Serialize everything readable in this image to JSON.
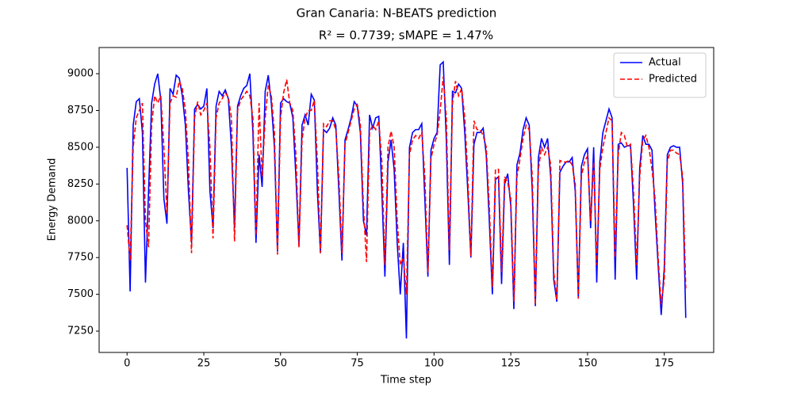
{
  "chart_data": {
    "type": "line",
    "title": "Gran Canaria: N-BEATS prediction",
    "subtitle": "R² = 0.7739; sMAPE = 1.47%",
    "xlabel": "Time step",
    "ylabel": "Energy Demand",
    "xlim": [
      -9.1,
      191.1
    ],
    "ylim": [
      7105,
      9178
    ],
    "xticks": [
      0,
      25,
      50,
      75,
      100,
      125,
      150,
      175
    ],
    "yticks": [
      7250,
      7500,
      7750,
      8000,
      8250,
      8500,
      8750,
      9000
    ],
    "legend": "upper right",
    "grid": false,
    "x": [
      0,
      1,
      2,
      3,
      4,
      5,
      6,
      7,
      8,
      9,
      10,
      11,
      12,
      13,
      14,
      15,
      16,
      17,
      18,
      19,
      20,
      21,
      22,
      23,
      24,
      25,
      26,
      27,
      28,
      29,
      30,
      31,
      32,
      33,
      34,
      35,
      36,
      37,
      38,
      39,
      40,
      41,
      42,
      43,
      44,
      45,
      46,
      47,
      48,
      49,
      50,
      51,
      52,
      53,
      54,
      55,
      56,
      57,
      58,
      59,
      60,
      61,
      62,
      63,
      64,
      65,
      66,
      67,
      68,
      69,
      70,
      71,
      72,
      73,
      74,
      75,
      76,
      77,
      78,
      79,
      80,
      81,
      82,
      83,
      84,
      85,
      86,
      87,
      88,
      89,
      90,
      91,
      92,
      93,
      94,
      95,
      96,
      97,
      98,
      99,
      100,
      101,
      102,
      103,
      104,
      105,
      106,
      107,
      108,
      109,
      110,
      111,
      112,
      113,
      114,
      115,
      116,
      117,
      118,
      119,
      120,
      121,
      122,
      123,
      124,
      125,
      126,
      127,
      128,
      129,
      130,
      131,
      132,
      133,
      134,
      135,
      136,
      137,
      138,
      139,
      140,
      141,
      142,
      143,
      144,
      145,
      146,
      147,
      148,
      149,
      150,
      151,
      152,
      153,
      154,
      155,
      156,
      157,
      158,
      159,
      160,
      161,
      162,
      163,
      164,
      165,
      166,
      167,
      168,
      169,
      170,
      171,
      172,
      173,
      174,
      175,
      176,
      177,
      178,
      179,
      180,
      181,
      182
    ],
    "series": [
      {
        "name": "Actual",
        "color": "#0000ff",
        "linestyle": "solid",
        "values": [
          8360,
          7520,
          8650,
          8810,
          8830,
          8600,
          7580,
          8200,
          8800,
          8930,
          9000,
          8820,
          8150,
          7980,
          8900,
          8860,
          8990,
          8970,
          8850,
          8650,
          8200,
          7850,
          8760,
          8790,
          8760,
          8780,
          8900,
          8200,
          7950,
          8780,
          8880,
          8850,
          8890,
          8830,
          8500,
          7950,
          8780,
          8850,
          8900,
          8920,
          9000,
          8600,
          7850,
          8450,
          8230,
          8880,
          8990,
          8800,
          8500,
          7790,
          8800,
          8830,
          8810,
          8800,
          8700,
          8300,
          7830,
          8650,
          8720,
          8650,
          8860,
          8820,
          8200,
          7780,
          8620,
          8600,
          8630,
          8700,
          8650,
          8200,
          7730,
          8550,
          8620,
          8700,
          8810,
          8780,
          8600,
          8000,
          7900,
          8720,
          8630,
          8700,
          8710,
          8200,
          7620,
          8400,
          8550,
          8350,
          7850,
          7500,
          7850,
          7200,
          8500,
          8600,
          8620,
          8620,
          8660,
          8150,
          7620,
          8480,
          8560,
          8600,
          9060,
          9080,
          8550,
          7700,
          8880,
          8870,
          8930,
          8900,
          8600,
          8200,
          7750,
          8520,
          8600,
          8600,
          8630,
          8450,
          8000,
          7500,
          8280,
          8300,
          7570,
          8250,
          8320,
          8100,
          7400,
          8380,
          8460,
          8620,
          8700,
          8650,
          8200,
          7420,
          8430,
          8560,
          8500,
          8560,
          8300,
          7600,
          7450,
          8330,
          8370,
          8400,
          8400,
          8430,
          8200,
          7480,
          8370,
          8450,
          8490,
          7950,
          8500,
          7580,
          8400,
          8600,
          8680,
          8760,
          8700,
          7600,
          8520,
          8530,
          8500,
          8510,
          8510,
          8100,
          7600,
          8360,
          8580,
          8520,
          8520,
          8480,
          8060,
          7700,
          7360,
          7680,
          8450,
          8500,
          8510,
          8500,
          8500,
          8250,
          7340
        ]
      },
      {
        "name": "Predicted",
        "color": "#ff0000",
        "linestyle": "dashed",
        "values": [
          7970,
          7730,
          8500,
          8700,
          8750,
          8800,
          8000,
          7820,
          8650,
          8850,
          8800,
          8850,
          8500,
          8050,
          8800,
          8850,
          8840,
          8950,
          8900,
          8750,
          8400,
          7780,
          8700,
          8810,
          8720,
          8750,
          8800,
          8500,
          7880,
          8700,
          8800,
          8830,
          8870,
          8840,
          8700,
          7860,
          8750,
          8820,
          8850,
          8880,
          8850,
          8700,
          7900,
          8800,
          8300,
          8700,
          8920,
          8850,
          8600,
          7770,
          8700,
          8870,
          8960,
          8800,
          8750,
          8450,
          7820,
          8550,
          8700,
          8750,
          8750,
          8820,
          8400,
          7780,
          8660,
          8640,
          8680,
          8680,
          8620,
          8300,
          7780,
          8520,
          8600,
          8680,
          8760,
          8790,
          8650,
          8100,
          7720,
          8600,
          8650,
          8620,
          8680,
          8400,
          7700,
          8500,
          8610,
          8500,
          8000,
          7700,
          7750,
          7500,
          8450,
          8550,
          8580,
          8560,
          8600,
          8300,
          7650,
          8420,
          8520,
          8580,
          8750,
          8980,
          8700,
          7800,
          8800,
          8950,
          8850,
          8900,
          8700,
          8300,
          7760,
          8680,
          8620,
          8620,
          8580,
          8500,
          8100,
          7550,
          8350,
          8350,
          7650,
          8300,
          8260,
          8150,
          7450,
          8300,
          8420,
          8560,
          8650,
          8620,
          8300,
          7430,
          8350,
          8500,
          8450,
          8500,
          8380,
          7650,
          7460,
          8410,
          8400,
          8400,
          8410,
          8380,
          8250,
          7470,
          8300,
          8400,
          8440,
          8000,
          8400,
          7700,
          8350,
          8500,
          8600,
          8700,
          8680,
          7750,
          8450,
          8600,
          8580,
          8500,
          8520,
          8200,
          7700,
          8300,
          8550,
          8580,
          8500,
          8350,
          8150,
          7750,
          7430,
          7600,
          8400,
          8480,
          8480,
          8460,
          8450,
          8300,
          7540
        ]
      }
    ]
  }
}
